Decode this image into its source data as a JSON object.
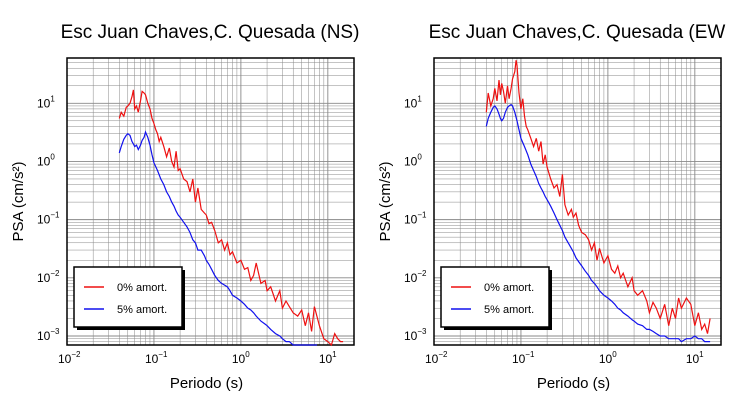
{
  "colors": {
    "zero": "#ee1111",
    "five": "#1111ee",
    "grid": "#888888"
  },
  "chart_data": [
    {
      "type": "line",
      "title": "Esc Juan Chaves,C. Quesada (NS)",
      "xlabel": "Periodo (s)",
      "ylabel": "PSA (cm/s²)",
      "xscale": "log",
      "yscale": "log",
      "xlim": [
        0.01,
        20
      ],
      "ylim": [
        0.0007,
        60
      ],
      "xticks": [
        "10⁻²",
        "10⁻¹",
        "10⁰",
        "10¹"
      ],
      "yticks": [
        "10⁻³",
        "10⁻²",
        "10⁻¹",
        "10⁰",
        "10¹"
      ],
      "grid": true,
      "legend_position": "bottom-left",
      "series": [
        {
          "name": "0% amort.",
          "color": "#ee1111",
          "x": [
            0.04,
            0.042,
            0.045,
            0.048,
            0.05,
            0.053,
            0.056,
            0.058,
            0.06,
            0.063,
            0.066,
            0.07,
            0.073,
            0.077,
            0.08,
            0.085,
            0.09,
            0.095,
            0.1,
            0.105,
            0.11,
            0.115,
            0.12,
            0.13,
            0.14,
            0.15,
            0.16,
            0.17,
            0.18,
            0.19,
            0.2,
            0.22,
            0.24,
            0.26,
            0.28,
            0.3,
            0.32,
            0.35,
            0.38,
            0.4,
            0.43,
            0.46,
            0.5,
            0.55,
            0.6,
            0.65,
            0.7,
            0.75,
            0.8,
            0.9,
            1.0,
            1.1,
            1.2,
            1.3,
            1.4,
            1.5,
            1.7,
            1.9,
            2.0,
            2.2,
            2.5,
            2.8,
            3.0,
            3.3,
            3.6,
            4.0,
            4.5,
            5.0,
            5.5,
            6.0,
            6.5,
            7.0,
            8.0,
            9.0,
            10.0,
            11.0,
            12.0,
            13.0,
            14.0,
            15.0
          ],
          "y": [
            5.5,
            7,
            6,
            8.5,
            9,
            10,
            13,
            17,
            8,
            9,
            7,
            11,
            16,
            15,
            14,
            10,
            8,
            5.5,
            4.5,
            3.5,
            3,
            2.2,
            2.6,
            1.8,
            1.2,
            1.7,
            1.0,
            0.8,
            1.5,
            0.7,
            0.75,
            0.5,
            0.45,
            0.3,
            0.5,
            0.2,
            0.35,
            0.15,
            0.13,
            0.12,
            0.085,
            0.09,
            0.065,
            0.04,
            0.045,
            0.03,
            0.04,
            0.025,
            0.028,
            0.018,
            0.02,
            0.014,
            0.015,
            0.009,
            0.011,
            0.018,
            0.008,
            0.009,
            0.006,
            0.007,
            0.004,
            0.006,
            0.003,
            0.004,
            0.0032,
            0.0025,
            0.0022,
            0.0028,
            0.0015,
            0.0025,
            0.0012,
            0.0032,
            0.0015,
            0.0009,
            0.0008,
            0.0007,
            0.0011,
            0.0009,
            0.0008,
            0.0008
          ]
        },
        {
          "name": "5% amort.",
          "color": "#1111ee",
          "x": [
            0.04,
            0.042,
            0.045,
            0.048,
            0.05,
            0.053,
            0.056,
            0.058,
            0.06,
            0.063,
            0.066,
            0.07,
            0.073,
            0.077,
            0.08,
            0.085,
            0.09,
            0.095,
            0.1,
            0.11,
            0.12,
            0.13,
            0.14,
            0.15,
            0.16,
            0.17,
            0.18,
            0.19,
            0.2,
            0.22,
            0.24,
            0.26,
            0.28,
            0.3,
            0.32,
            0.35,
            0.38,
            0.4,
            0.43,
            0.46,
            0.5,
            0.55,
            0.6,
            0.65,
            0.7,
            0.75,
            0.8,
            0.9,
            1.0,
            1.1,
            1.2,
            1.3,
            1.4,
            1.5,
            1.7,
            1.9,
            2.0,
            2.2,
            2.5,
            2.8,
            3.0,
            3.3,
            3.6,
            4.0,
            4.5,
            5.0,
            5.5,
            6.0,
            6.5,
            7.0,
            7.5
          ],
          "y": [
            1.4,
            1.8,
            2.4,
            2.8,
            3.0,
            2.8,
            2.2,
            2.0,
            1.8,
            1.9,
            1.6,
            1.9,
            2.3,
            2.6,
            3.2,
            2.6,
            1.9,
            1.3,
            0.95,
            0.7,
            0.5,
            0.4,
            0.3,
            0.25,
            0.2,
            0.17,
            0.14,
            0.12,
            0.11,
            0.09,
            0.075,
            0.06,
            0.045,
            0.04,
            0.03,
            0.03,
            0.024,
            0.02,
            0.017,
            0.014,
            0.011,
            0.009,
            0.008,
            0.0075,
            0.007,
            0.006,
            0.005,
            0.0045,
            0.004,
            0.0035,
            0.003,
            0.0028,
            0.0025,
            0.0022,
            0.0018,
            0.0016,
            0.0015,
            0.0013,
            0.0011,
            0.001,
            0.0009,
            0.0008,
            0.0008,
            0.0007,
            0.0007,
            0.0007,
            0.0007,
            0.0007,
            0.0007,
            0.0007,
            0.0007
          ]
        }
      ]
    },
    {
      "type": "line",
      "title": "Esc Juan Chaves,C. Quesada (EW",
      "xlabel": "Periodo (s)",
      "ylabel": "PSA (cm/s²)",
      "xscale": "log",
      "yscale": "log",
      "xlim": [
        0.01,
        20
      ],
      "ylim": [
        0.0007,
        60
      ],
      "xticks": [
        "10⁻²",
        "10⁻¹",
        "10⁰",
        "10¹"
      ],
      "yticks": [
        "10⁻³",
        "10⁻²",
        "10⁻¹",
        "10⁰",
        "10¹"
      ],
      "grid": true,
      "legend_position": "bottom-left",
      "series": [
        {
          "name": "0% amort.",
          "color": "#ee1111",
          "x": [
            0.04,
            0.042,
            0.045,
            0.048,
            0.05,
            0.053,
            0.056,
            0.058,
            0.06,
            0.063,
            0.066,
            0.07,
            0.073,
            0.077,
            0.08,
            0.085,
            0.088,
            0.09,
            0.095,
            0.1,
            0.105,
            0.11,
            0.115,
            0.12,
            0.13,
            0.14,
            0.15,
            0.16,
            0.17,
            0.18,
            0.19,
            0.2,
            0.22,
            0.24,
            0.26,
            0.28,
            0.3,
            0.32,
            0.35,
            0.38,
            0.4,
            0.43,
            0.46,
            0.5,
            0.55,
            0.6,
            0.65,
            0.7,
            0.75,
            0.8,
            0.9,
            1.0,
            1.1,
            1.2,
            1.3,
            1.4,
            1.5,
            1.7,
            1.9,
            2.0,
            2.2,
            2.5,
            2.8,
            3.0,
            3.3,
            3.6,
            4.0,
            4.5,
            5.0,
            5.5,
            6.0,
            6.5,
            7.0,
            8.0,
            9.0,
            10.0,
            11.0,
            12.0,
            13.0,
            14.0,
            15.0
          ],
          "y": [
            7,
            15,
            9,
            12,
            18,
            11,
            25,
            14,
            22,
            16,
            10,
            20,
            12,
            18,
            26,
            35,
            55,
            45,
            15,
            8,
            12,
            6,
            4,
            3.5,
            2.5,
            1.8,
            2.5,
            1.5,
            2.2,
            0.9,
            1.3,
            0.8,
            0.5,
            0.35,
            0.4,
            0.25,
            0.6,
            0.18,
            0.12,
            0.15,
            0.11,
            0.13,
            0.08,
            0.06,
            0.055,
            0.045,
            0.03,
            0.04,
            0.02,
            0.032,
            0.018,
            0.024,
            0.014,
            0.012,
            0.016,
            0.01,
            0.012,
            0.007,
            0.01,
            0.006,
            0.005,
            0.006,
            0.004,
            0.0025,
            0.0038,
            0.003,
            0.002,
            0.0035,
            0.0015,
            0.003,
            0.002,
            0.0045,
            0.003,
            0.0045,
            0.0035,
            0.0015,
            0.0025,
            0.0013,
            0.0016,
            0.0011,
            0.002
          ]
        },
        {
          "name": "5% amort.",
          "color": "#1111ee",
          "x": [
            0.04,
            0.042,
            0.045,
            0.048,
            0.05,
            0.053,
            0.056,
            0.058,
            0.06,
            0.063,
            0.066,
            0.07,
            0.073,
            0.077,
            0.08,
            0.085,
            0.09,
            0.095,
            0.1,
            0.11,
            0.12,
            0.13,
            0.14,
            0.15,
            0.16,
            0.17,
            0.18,
            0.19,
            0.2,
            0.22,
            0.24,
            0.26,
            0.28,
            0.3,
            0.32,
            0.35,
            0.38,
            0.4,
            0.43,
            0.46,
            0.5,
            0.55,
            0.6,
            0.65,
            0.7,
            0.75,
            0.8,
            0.9,
            1.0,
            1.1,
            1.2,
            1.3,
            1.4,
            1.5,
            1.7,
            1.9,
            2.0,
            2.2,
            2.5,
            2.8,
            3.0,
            3.3,
            3.6,
            4.0,
            4.5,
            5.0,
            5.5,
            6.0,
            6.5,
            7.0,
            8.0,
            9.0,
            10.0,
            11.0,
            12.0,
            13.0,
            14.0,
            15.0
          ],
          "y": [
            4,
            5.5,
            7,
            8.5,
            9,
            8,
            6.5,
            5.5,
            5,
            5.5,
            7,
            8.5,
            9,
            9.5,
            9,
            7,
            5,
            3.5,
            2.5,
            1.8,
            1.3,
            0.9,
            0.7,
            0.55,
            0.42,
            0.35,
            0.3,
            0.25,
            0.22,
            0.17,
            0.13,
            0.1,
            0.08,
            0.065,
            0.05,
            0.04,
            0.032,
            0.028,
            0.022,
            0.019,
            0.016,
            0.013,
            0.011,
            0.009,
            0.008,
            0.007,
            0.006,
            0.005,
            0.0045,
            0.004,
            0.0035,
            0.003,
            0.0028,
            0.0025,
            0.0022,
            0.0019,
            0.0018,
            0.0016,
            0.0015,
            0.0013,
            0.0013,
            0.0012,
            0.0011,
            0.001,
            0.001,
            0.0009,
            0.0009,
            0.0009,
            0.0009,
            0.0008,
            0.0009,
            0.0009,
            0.001,
            0.0009,
            0.0009,
            0.0008,
            0.0008,
            0.0008
          ]
        }
      ]
    }
  ]
}
